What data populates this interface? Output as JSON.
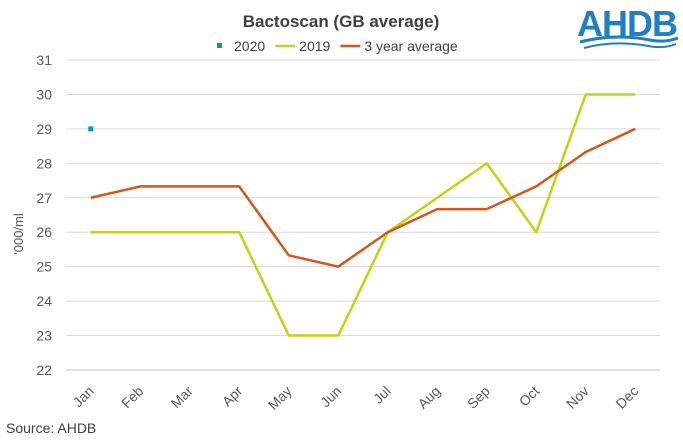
{
  "chart_data": {
    "type": "line",
    "title": "Bactoscan (GB average)",
    "ylabel": "'000/ml",
    "xlabel": "",
    "categories": [
      "Jan",
      "Feb",
      "Mar",
      "Apr",
      "May",
      "Jun",
      "Jul",
      "Aug",
      "Sep",
      "Oct",
      "Nov",
      "Dec"
    ],
    "ylim": [
      22,
      31
    ],
    "yticks": [
      22,
      23,
      24,
      25,
      26,
      27,
      28,
      29,
      30,
      31
    ],
    "grid": true,
    "legend_position": "top",
    "series": [
      {
        "name": "2020",
        "color": "#0e8fc4",
        "values": [
          29,
          null,
          null,
          null,
          null,
          null,
          null,
          null,
          null,
          null,
          null,
          null
        ]
      },
      {
        "name": "2019",
        "color": "#c3d310",
        "values": [
          26,
          26,
          26,
          26,
          23,
          23,
          26,
          27,
          28,
          26,
          30,
          30
        ]
      },
      {
        "name": "3 year average",
        "color": "#d5561a",
        "values": [
          27,
          27.33,
          27.33,
          27.33,
          25.33,
          25,
          26,
          26.67,
          26.67,
          27.33,
          28.33,
          29
        ]
      }
    ]
  },
  "source": "Source: AHDB",
  "logo": {
    "text": "AHDB",
    "color": "#1f7fc1"
  }
}
